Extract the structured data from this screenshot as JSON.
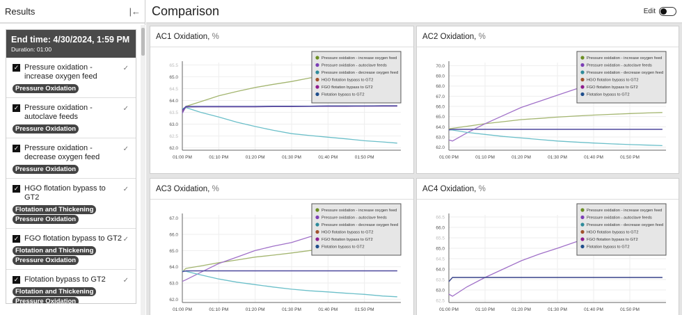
{
  "left_panel": {
    "title": "Results",
    "collapse_icon": "collapse-left-icon",
    "run": {
      "end_time": "End time: 4/30/2024, 1:59 PM",
      "duration": "Duration: 01:00"
    },
    "items": [
      {
        "label": "Pressure oxidation - increase oxygen feed",
        "tags": [
          "Pressure Oxidation"
        ]
      },
      {
        "label": "Pressure oxidation - autoclave feeds",
        "tags": [
          "Pressure Oxidation"
        ]
      },
      {
        "label": "Pressure oxidation - decrease oxygen feed",
        "tags": [
          "Pressure Oxidation"
        ]
      },
      {
        "label": "HGO flotation bypass to GT2",
        "tags": [
          "Flotation and Thickening",
          "Pressure Oxidation"
        ]
      },
      {
        "label": "FGO flotation bypass to GT2",
        "tags": [
          "Flotation and Thickening",
          "Pressure Oxidation"
        ]
      },
      {
        "label": "Flotation bypass to GT2",
        "tags": [
          "Flotation and Thickening",
          "Pressure Oxidation"
        ]
      }
    ]
  },
  "main": {
    "title": "Comparison",
    "edit_label": "Edit",
    "edit_on": false
  },
  "chart_data": [
    {
      "type": "line",
      "title": "AC1 Oxidation,",
      "unit": "%",
      "ylim": [
        61.9,
        65.6
      ],
      "yticks": [
        62.0,
        62.5,
        63.0,
        63.5,
        64.0,
        64.5,
        65.0,
        65.5
      ],
      "xticks": [
        "01:00 PM",
        "01:10 PM",
        "01:20 PM",
        "01:30 PM",
        "01:40 PM",
        "01:50 PM"
      ],
      "legend": "top-right",
      "grid": true,
      "x": [
        "01:00 PM",
        "01:01 PM",
        "01:05 PM",
        "01:10 PM",
        "01:15 PM",
        "01:20 PM",
        "01:25 PM",
        "01:30 PM",
        "01:35 PM",
        "01:40 PM",
        "01:45 PM",
        "01:50 PM",
        "01:55 PM",
        "01:59 PM"
      ],
      "series": [
        {
          "name": "Pressure oxidation - increase oxygen feed",
          "color": "#6b8e23",
          "line": "#a3b56f",
          "values": [
            63.6,
            63.75,
            63.95,
            64.2,
            64.38,
            64.55,
            64.68,
            64.8,
            64.95,
            65.05,
            65.15,
            65.22,
            65.3,
            65.35
          ]
        },
        {
          "name": "Pressure oxidation - autoclave feeds",
          "color": "#7b3fb5",
          "line": "#9b6fd0",
          "values": [
            63.45,
            63.75,
            63.75,
            63.75,
            63.75,
            63.75,
            63.75,
            63.76,
            63.76,
            63.77,
            63.77,
            63.77,
            63.78,
            63.78
          ]
        },
        {
          "name": "Pressure oxidation - decrease oxygen feed",
          "color": "#2e8b9a",
          "line": "#6bbfc9",
          "values": [
            63.65,
            63.7,
            63.5,
            63.3,
            63.08,
            62.9,
            62.74,
            62.6,
            62.52,
            62.45,
            62.38,
            62.3,
            62.25,
            62.2
          ]
        },
        {
          "name": "HGO flotation bypass to GT2",
          "color": "#a0522d",
          "line": "#7a5aa0",
          "values": [
            63.5,
            63.72,
            63.73,
            63.73,
            63.73,
            63.73,
            63.74,
            63.74,
            63.75,
            63.75,
            63.75,
            63.76,
            63.76,
            63.76
          ]
        },
        {
          "name": "FGO flotation bypass to GT2",
          "color": "#8e1c8e",
          "line": "#8a4fb0",
          "values": [
            63.55,
            63.74,
            63.74,
            63.74,
            63.74,
            63.74,
            63.75,
            63.75,
            63.75,
            63.76,
            63.76,
            63.76,
            63.77,
            63.77
          ]
        },
        {
          "name": "Flotation bypass to GT2",
          "color": "#1f4e8c",
          "line": "#4a4fa0",
          "values": [
            63.6,
            63.75,
            63.75,
            63.75,
            63.75,
            63.75,
            63.76,
            63.76,
            63.76,
            63.77,
            63.77,
            63.77,
            63.78,
            63.78
          ]
        }
      ]
    },
    {
      "type": "line",
      "title": "AC2 Oxidation,",
      "unit": "%",
      "ylim": [
        61.7,
        70.3
      ],
      "yticks": [
        62.0,
        63.0,
        64.0,
        65.0,
        66.0,
        67.0,
        68.0,
        69.0,
        70.0
      ],
      "xticks": [
        "01:00 PM",
        "01:10 PM",
        "01:20 PM",
        "01:30 PM",
        "01:40 PM",
        "01:50 PM"
      ],
      "legend": "top-right",
      "grid": true,
      "x": [
        "01:00 PM",
        "01:01 PM",
        "01:05 PM",
        "01:10 PM",
        "01:15 PM",
        "01:20 PM",
        "01:25 PM",
        "01:30 PM",
        "01:35 PM",
        "01:40 PM",
        "01:45 PM",
        "01:50 PM",
        "01:55 PM",
        "01:59 PM"
      ],
      "series": [
        {
          "name": "Pressure oxidation - increase oxygen feed",
          "color": "#6b8e23",
          "line": "#a3b56f",
          "values": [
            63.8,
            63.85,
            64.05,
            64.3,
            64.5,
            64.7,
            64.82,
            64.95,
            65.05,
            65.15,
            65.22,
            65.3,
            65.36,
            65.4
          ]
        },
        {
          "name": "Pressure oxidation - autoclave feeds",
          "color": "#7b3fb5",
          "line": "#a070c8",
          "values": [
            62.7,
            62.6,
            63.4,
            64.3,
            65.1,
            65.9,
            66.5,
            67.1,
            67.7,
            68.2,
            68.6,
            69.0,
            69.3,
            69.5
          ]
        },
        {
          "name": "Pressure oxidation - decrease oxygen feed",
          "color": "#2e8b9a",
          "line": "#6bbfc9",
          "values": [
            63.7,
            63.68,
            63.45,
            63.25,
            63.05,
            62.9,
            62.75,
            62.6,
            62.5,
            62.4,
            62.32,
            62.25,
            62.2,
            62.15
          ]
        },
        {
          "name": "HGO flotation bypass to GT2",
          "color": "#a0522d",
          "line": "#7a5aa0",
          "values": [
            63.7,
            63.75,
            63.75,
            63.75,
            63.75,
            63.75,
            63.75,
            63.75,
            63.75,
            63.75,
            63.75,
            63.75,
            63.75,
            63.75
          ]
        },
        {
          "name": "FGO flotation bypass to GT2",
          "color": "#8e1c8e",
          "line": "#8a4fb0",
          "values": [
            63.7,
            63.75,
            63.75,
            63.75,
            63.75,
            63.75,
            63.75,
            63.75,
            63.75,
            63.75,
            63.75,
            63.75,
            63.75,
            63.75
          ]
        },
        {
          "name": "Flotation bypass to GT2",
          "color": "#1f4e8c",
          "line": "#4a4fa0",
          "values": [
            63.7,
            63.75,
            63.75,
            63.75,
            63.75,
            63.75,
            63.75,
            63.75,
            63.75,
            63.75,
            63.75,
            63.75,
            63.75,
            63.75
          ]
        }
      ]
    },
    {
      "type": "line",
      "title": "AC3 Oxidation,",
      "unit": "%",
      "ylim": [
        61.8,
        67.2
      ],
      "yticks": [
        62.0,
        63.0,
        64.0,
        65.0,
        66.0,
        67.0
      ],
      "xticks": [
        "01:00 PM",
        "01:10 PM",
        "01:20 PM",
        "01:30 PM",
        "01:40 PM",
        "01:50 PM"
      ],
      "legend": "top-right",
      "grid": true,
      "x": [
        "01:00 PM",
        "01:01 PM",
        "01:05 PM",
        "01:10 PM",
        "01:15 PM",
        "01:20 PM",
        "01:25 PM",
        "01:30 PM",
        "01:35 PM",
        "01:40 PM",
        "01:45 PM",
        "01:50 PM",
        "01:55 PM",
        "01:59 PM"
      ],
      "series": [
        {
          "name": "Pressure oxidation - increase oxygen feed",
          "color": "#6b8e23",
          "line": "#a3b56f",
          "values": [
            63.7,
            63.9,
            64.05,
            64.25,
            64.42,
            64.6,
            64.72,
            64.85,
            65.0,
            65.08,
            65.2,
            65.27,
            65.32,
            65.35
          ]
        },
        {
          "name": "Pressure oxidation - autoclave feeds",
          "color": "#7b3fb5",
          "line": "#a070c8",
          "values": [
            63.1,
            63.2,
            63.65,
            64.2,
            64.6,
            65.0,
            65.27,
            65.5,
            65.85,
            66.05,
            66.3,
            66.42,
            66.52,
            66.6
          ]
        },
        {
          "name": "Pressure oxidation - decrease oxygen feed",
          "color": "#2e8b9a",
          "line": "#6bbfc9",
          "values": [
            63.75,
            63.72,
            63.5,
            63.25,
            63.05,
            62.9,
            62.75,
            62.62,
            62.52,
            62.45,
            62.37,
            62.3,
            62.2,
            62.15
          ]
        },
        {
          "name": "HGO flotation bypass to GT2",
          "color": "#a0522d",
          "line": "#7a5aa0",
          "values": [
            63.7,
            63.75,
            63.75,
            63.75,
            63.75,
            63.75,
            63.75,
            63.75,
            63.75,
            63.75,
            63.75,
            63.75,
            63.75,
            63.75
          ]
        },
        {
          "name": "FGO flotation bypass to GT2",
          "color": "#8e1c8e",
          "line": "#8a4fb0",
          "values": [
            63.7,
            63.75,
            63.75,
            63.75,
            63.75,
            63.75,
            63.75,
            63.75,
            63.75,
            63.75,
            63.75,
            63.75,
            63.75,
            63.75
          ]
        },
        {
          "name": "Flotation bypass to GT2",
          "color": "#1f4e8c",
          "line": "#4a4fa0",
          "values": [
            63.7,
            63.75,
            63.75,
            63.75,
            63.75,
            63.75,
            63.75,
            63.75,
            63.75,
            63.75,
            63.75,
            63.75,
            63.75,
            63.75
          ]
        }
      ]
    },
    {
      "type": "line",
      "title": "AC4 Oxidation,",
      "unit": "%",
      "ylim": [
        62.4,
        66.6
      ],
      "yticks": [
        62.5,
        63.0,
        63.5,
        64.0,
        64.5,
        65.0,
        65.5,
        66.0,
        66.5
      ],
      "xticks": [
        "01:00 PM",
        "01:10 PM",
        "01:20 PM",
        "01:30 PM",
        "01:40 PM",
        "01:50 PM"
      ],
      "legend": "top-right",
      "grid": true,
      "x": [
        "01:00 PM",
        "01:01 PM",
        "01:05 PM",
        "01:10 PM",
        "01:15 PM",
        "01:20 PM",
        "01:25 PM",
        "01:30 PM",
        "01:35 PM",
        "01:40 PM",
        "01:45 PM",
        "01:50 PM",
        "01:55 PM",
        "01:59 PM"
      ],
      "series": [
        {
          "name": "Pressure oxidation - increase oxygen feed",
          "color": "#6b8e23",
          "line": "#a3b56f",
          "values": null
        },
        {
          "name": "Pressure oxidation - autoclave feeds",
          "color": "#7b3fb5",
          "line": "#a070c8",
          "values": [
            62.8,
            62.7,
            63.15,
            63.6,
            64.0,
            64.4,
            64.72,
            65.0,
            65.3,
            65.55,
            65.8,
            66.0,
            66.1,
            66.2
          ]
        },
        {
          "name": "Pressure oxidation - decrease oxygen feed",
          "color": "#2e8b9a",
          "line": "#6bbfc9",
          "values": null
        },
        {
          "name": "HGO flotation bypass to GT2",
          "color": "#a0522d",
          "line": "#4a4fa0",
          "values": [
            63.4,
            63.6,
            63.6,
            63.6,
            63.6,
            63.6,
            63.6,
            63.6,
            63.6,
            63.6,
            63.6,
            63.6,
            63.6,
            63.6
          ]
        },
        {
          "name": "FGO flotation bypass to GT2",
          "color": "#8e1c8e",
          "line": "#4a4fa0",
          "values": [
            63.4,
            63.6,
            63.6,
            63.6,
            63.6,
            63.6,
            63.6,
            63.6,
            63.6,
            63.6,
            63.6,
            63.6,
            63.6,
            63.6
          ]
        },
        {
          "name": "Flotation bypass to GT2",
          "color": "#1f4e8c",
          "line": "#3f4a8a",
          "values": [
            63.4,
            63.6,
            63.6,
            63.6,
            63.6,
            63.6,
            63.6,
            63.6,
            63.6,
            63.6,
            63.6,
            63.6,
            63.6,
            63.6
          ]
        }
      ]
    }
  ]
}
